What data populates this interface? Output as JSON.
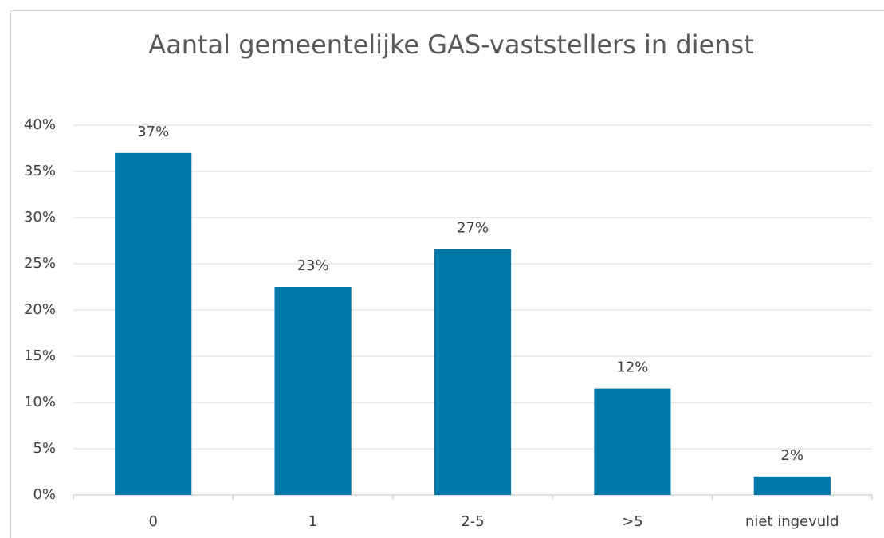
{
  "chart_data": {
    "type": "bar",
    "title": "Aantal gemeentelijke GAS-vaststellers in dienst",
    "categories": [
      "0",
      "1",
      "2-5",
      ">5",
      "niet ingevuld"
    ],
    "values": [
      37,
      22.5,
      26.6,
      11.5,
      2
    ],
    "value_labels": [
      "37%",
      "23%",
      "27%",
      "12%",
      "2%"
    ],
    "color": "#0079aa",
    "ylim": [
      0,
      40
    ],
    "yticks": [
      {
        "value": 0,
        "label": "0%"
      },
      {
        "value": 5,
        "label": "5%"
      },
      {
        "value": 10,
        "label": "10%"
      },
      {
        "value": 15,
        "label": "15%"
      },
      {
        "value": 20,
        "label": "20%"
      },
      {
        "value": 25,
        "label": "25%"
      },
      {
        "value": 30,
        "label": "30%"
      },
      {
        "value": 35,
        "label": "35%"
      },
      {
        "value": 40,
        "label": "40%"
      }
    ],
    "grid": true
  }
}
